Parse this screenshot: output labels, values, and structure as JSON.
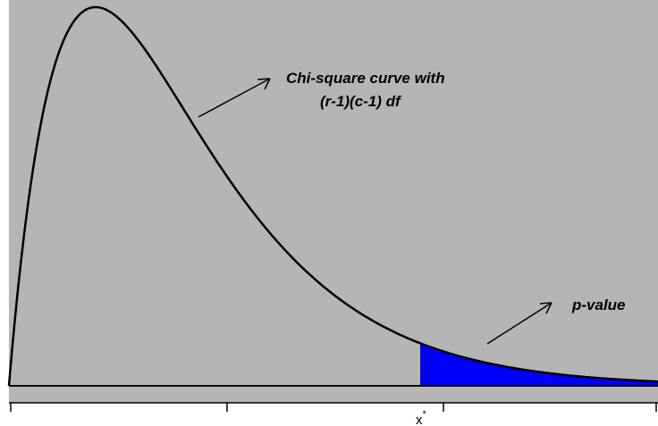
{
  "diagram": {
    "curve_annotation": {
      "line1": "Chi-square curve with",
      "line2": "(r-1)(c-1) df"
    },
    "pvalue_annotation": {
      "text": "p-value"
    },
    "axis": {
      "critical_symbol": "x",
      "critical_superscript": "*"
    },
    "colors": {
      "panel": "#b5b5b5",
      "curve": "#000000",
      "shaded_tail": "#0000ff",
      "axis": "#000000",
      "background": "#ffffff"
    }
  }
}
